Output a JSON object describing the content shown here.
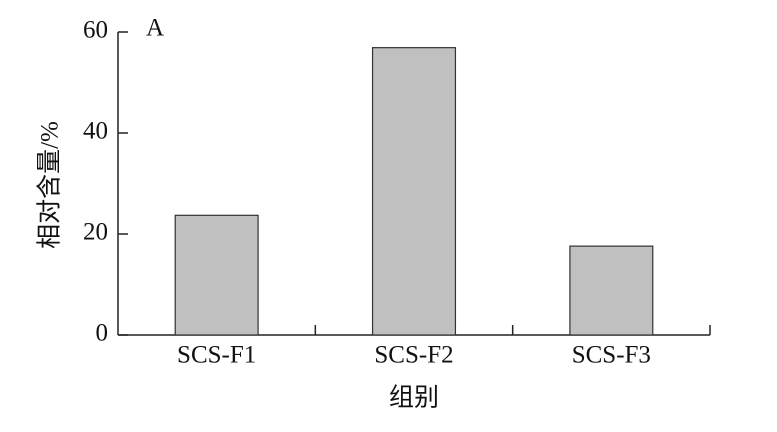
{
  "chart_data": {
    "type": "bar",
    "panel_label": "A",
    "xlabel": "组别",
    "ylabel": "相对含量/%",
    "categories": [
      "SCS-F1",
      "SCS-F2",
      "SCS-F3"
    ],
    "values": [
      23.7,
      56.9,
      17.6
    ],
    "color": "#c0c0c0",
    "ylim": [
      0,
      60
    ],
    "yticks": [
      0,
      20,
      40,
      60
    ],
    "grid": false
  }
}
